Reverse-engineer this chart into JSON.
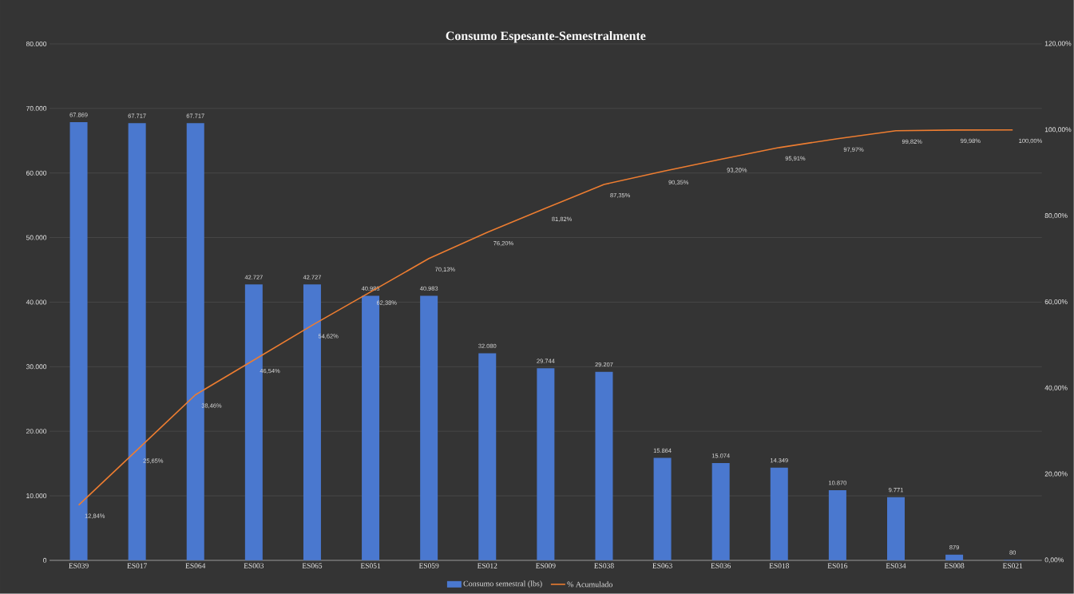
{
  "chart_data": {
    "type": "bar",
    "title": "Consumo Espesante-Semestralmente",
    "categories": [
      "ES039",
      "ES017",
      "ES064",
      "ES003",
      "ES065",
      "ES051",
      "ES059",
      "ES012",
      "ES009",
      "ES038",
      "ES063",
      "ES036",
      "ES018",
      "ES016",
      "ES034",
      "ES008",
      "ES021"
    ],
    "series": [
      {
        "name": "Consumo semestral (lbs)",
        "color": "#4a78cf",
        "values": [
          67869,
          67717,
          67717,
          42727,
          42727,
          40983,
          40983,
          32080,
          29744,
          29207,
          15864,
          15074,
          14349,
          10870,
          9771,
          879,
          80
        ],
        "value_labels": [
          "67.869",
          "67.717",
          "67.717",
          "42.727",
          "42.727",
          "40.983",
          "40.983",
          "32.080",
          "29.744",
          "29.207",
          "15.864",
          "15.074",
          "14.349",
          "10.870",
          "9.771",
          "879",
          "80"
        ]
      },
      {
        "name": "% Acumulado",
        "type": "line",
        "axis": "y2",
        "color": "#ed7d31",
        "values": [
          12.84,
          25.65,
          38.46,
          46.54,
          54.62,
          62.38,
          70.13,
          76.2,
          81.82,
          87.35,
          90.35,
          93.2,
          95.91,
          97.97,
          99.82,
          99.98,
          100
        ],
        "value_labels": [
          "12,84%",
          "25,65%",
          "38,46%",
          "46,54%",
          "54,62%",
          "62,38%",
          "70,13%",
          "76,20%",
          "81,82%",
          "87,35%",
          "90,35%",
          "93,20%",
          "95,91%",
          "97,97%",
          "99,82%",
          "99,98%",
          "100,00%"
        ]
      }
    ],
    "ylim": [
      0,
      80000
    ],
    "yticks": [
      {
        "value": 0,
        "label": "0"
      },
      {
        "value": 10000,
        "label": "10.000"
      },
      {
        "value": 20000,
        "label": "20.000"
      },
      {
        "value": 30000,
        "label": "30.000"
      },
      {
        "value": 40000,
        "label": "40.000"
      },
      {
        "value": 50000,
        "label": "50.000"
      },
      {
        "value": 60000,
        "label": "60.000"
      },
      {
        "value": 70000,
        "label": "70.000"
      },
      {
        "value": 80000,
        "label": "80.000"
      }
    ],
    "y2lim": [
      0,
      120
    ],
    "y2ticks": [
      {
        "value": 0,
        "label": "0,00%"
      },
      {
        "value": 20,
        "label": "20,00%"
      },
      {
        "value": 40,
        "label": "40,00%"
      },
      {
        "value": 60,
        "label": "60,00%"
      },
      {
        "value": 80,
        "label": "80,00%"
      },
      {
        "value": 100,
        "label": "100,00%"
      },
      {
        "value": 120,
        "label": "120,00%"
      }
    ],
    "grid": "y",
    "legend": "bottom",
    "marker": "none",
    "line_style": "solid"
  }
}
